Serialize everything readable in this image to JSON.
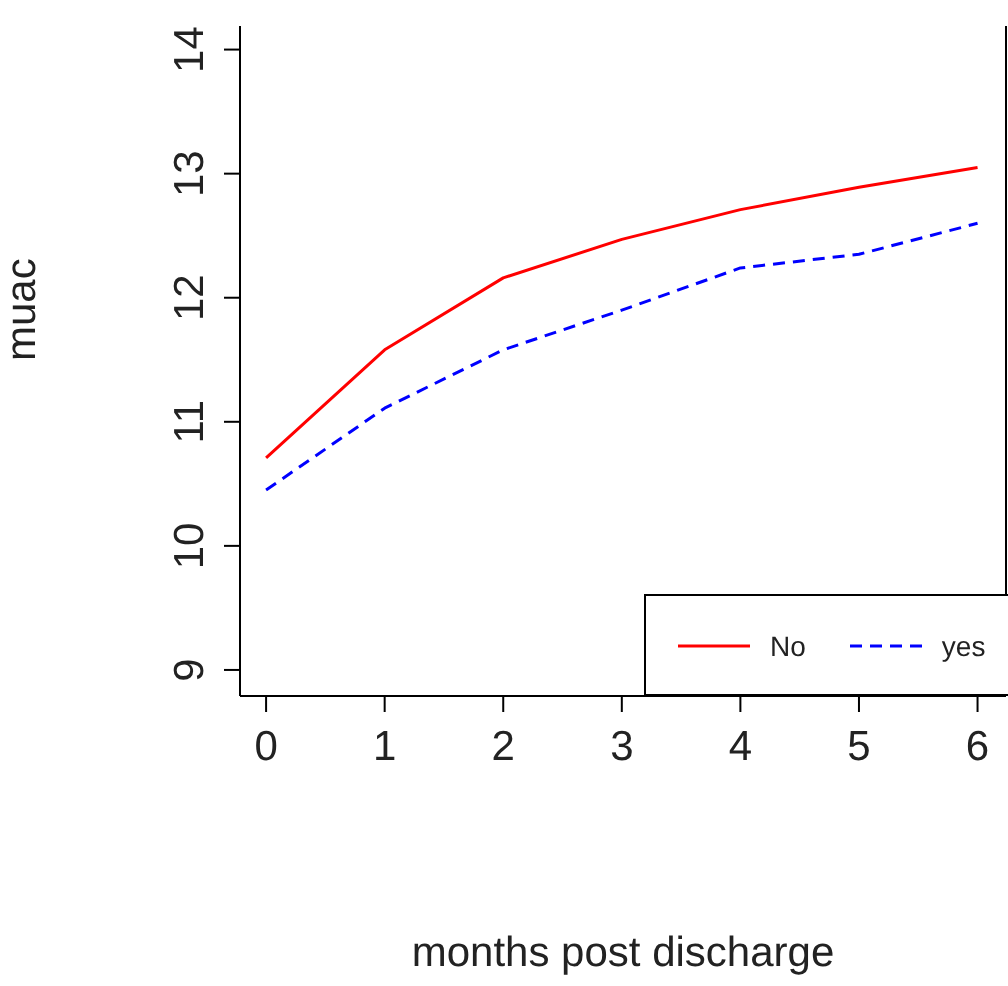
{
  "chart_data": {
    "type": "line",
    "xlabel": "months post discharge",
    "ylabel": "muac",
    "x": [
      0,
      1,
      2,
      3,
      4,
      5,
      6
    ],
    "series": [
      {
        "name": "No",
        "color": "#ff0000",
        "values": [
          10.71,
          11.58,
          12.16,
          12.47,
          12.71,
          12.89,
          13.05
        ],
        "line_style": "solid"
      },
      {
        "name": "yes",
        "color": "#0000ff",
        "values": [
          10.45,
          11.11,
          11.58,
          11.9,
          12.24,
          12.35,
          12.6
        ],
        "line_style": "dashed"
      }
    ],
    "xlim": [
      -0.22,
      6.24
    ],
    "xticks": [
      0,
      1,
      2,
      3,
      4,
      5,
      6
    ],
    "ylim": [
      8.79,
      14.19
    ],
    "yticks": [
      9,
      10,
      11,
      12,
      13,
      14
    ],
    "legend": "bottom right",
    "grid": false,
    "marker": "none"
  }
}
